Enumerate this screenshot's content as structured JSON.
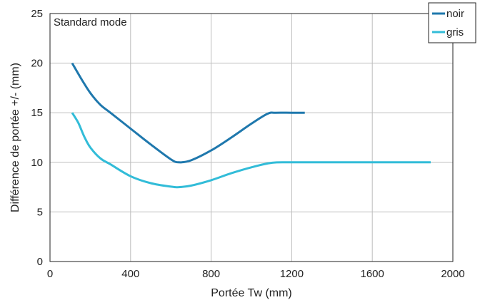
{
  "chart_data": {
    "type": "line",
    "title": "",
    "annotation": "Standard mode",
    "xlabel": "Portée Tw (mm)",
    "ylabel": "Différence de portée +/- (mm)",
    "xlim": [
      0,
      2000
    ],
    "ylim": [
      0,
      25
    ],
    "xticks": [
      0,
      400,
      800,
      1200,
      1600,
      2000
    ],
    "yticks": [
      0,
      5,
      10,
      15,
      20,
      25
    ],
    "grid": true,
    "legend_position": "top-right",
    "series": [
      {
        "name": "noir",
        "color": "#1f78ad",
        "x": [
          110,
          150,
          200,
          250,
          300,
          400,
          500,
          600,
          640,
          700,
          800,
          900,
          1000,
          1080,
          1120,
          1200,
          1265
        ],
        "y": [
          20,
          18.6,
          17,
          15.8,
          15,
          13.4,
          11.8,
          10.3,
          10,
          10.2,
          11.2,
          12.5,
          13.9,
          14.9,
          15,
          15,
          15
        ]
      },
      {
        "name": "gris",
        "color": "#32bcd8",
        "x": [
          110,
          140,
          170,
          200,
          250,
          300,
          400,
          500,
          600,
          640,
          700,
          800,
          900,
          1000,
          1100,
          1200,
          1400,
          1600,
          1890
        ],
        "y": [
          15,
          14,
          12.6,
          11.5,
          10.4,
          9.8,
          8.6,
          7.9,
          7.55,
          7.5,
          7.65,
          8.2,
          8.9,
          9.5,
          9.95,
          10,
          10,
          10,
          10
        ]
      }
    ]
  }
}
